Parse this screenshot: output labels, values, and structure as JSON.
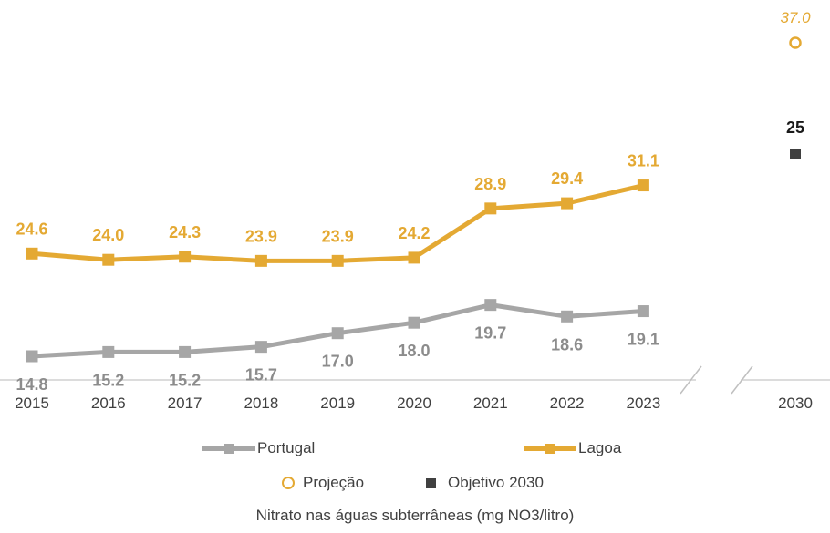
{
  "chart_data": {
    "type": "line",
    "categories": [
      "2015",
      "2016",
      "2017",
      "2018",
      "2019",
      "2020",
      "2021",
      "2022",
      "2023"
    ],
    "series": [
      {
        "name": "Portugal",
        "values": [
          14.8,
          15.2,
          15.2,
          15.7,
          17.0,
          18.0,
          19.7,
          18.6,
          19.1
        ],
        "labels": [
          "14.8",
          "15.2",
          "15.2",
          "15.7",
          "17.0",
          "18.0",
          "19.7",
          "18.6",
          "19.1"
        ],
        "color": "#A6A6A6"
      },
      {
        "name": "Lagoa",
        "values": [
          24.6,
          24.0,
          24.3,
          23.9,
          23.9,
          24.2,
          28.9,
          29.4,
          31.1
        ],
        "labels": [
          "24.6",
          "24.0",
          "24.3",
          "23.9",
          "23.9",
          "24.2",
          "28.9",
          "29.4",
          "31.1"
        ],
        "color": "#E4A933"
      }
    ],
    "target_year": "2030",
    "projection": {
      "name": "Projeção",
      "year": "2030",
      "value": 37.0,
      "label": "37.0",
      "color": "#E4A933"
    },
    "objective": {
      "name": "Objetivo 2030",
      "year": "2030",
      "value": 25,
      "label": "25",
      "color": "#404040"
    },
    "caption": "Nitrato nas águas subterrâneas (mg NO3/litro)",
    "legend_position": "bottom",
    "grid": false,
    "axis_break": true,
    "ylim": [
      0,
      40
    ]
  }
}
